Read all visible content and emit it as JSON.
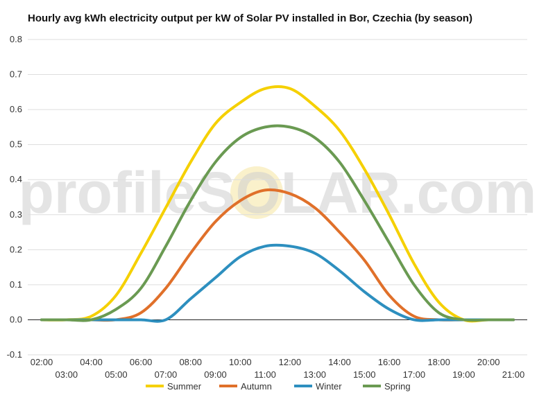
{
  "chart_data": {
    "type": "line",
    "title": "Hourly avg kWh electricity output per kW of Solar PV installed in Bor, Czechia (by season)",
    "watermark": "profileSOLAR.com",
    "xlabel": "",
    "ylabel": "",
    "ylim": [
      -0.1,
      0.8
    ],
    "yticks": [
      "-0.1",
      "0.0",
      "0.1",
      "0.2",
      "0.3",
      "0.4",
      "0.5",
      "0.6",
      "0.7",
      "0.8"
    ],
    "x": [
      "02:00",
      "03:00",
      "04:00",
      "05:00",
      "06:00",
      "07:00",
      "08:00",
      "09:00",
      "10:00",
      "11:00",
      "12:00",
      "13:00",
      "14:00",
      "15:00",
      "16:00",
      "17:00",
      "18:00",
      "19:00",
      "20:00",
      "21:00"
    ],
    "grid": true,
    "legend_position": "bottom",
    "series": [
      {
        "name": "Summer",
        "color": "#f5d000",
        "values": [
          0.0,
          0.0,
          0.01,
          0.07,
          0.19,
          0.32,
          0.45,
          0.56,
          0.62,
          0.66,
          0.66,
          0.61,
          0.54,
          0.43,
          0.3,
          0.16,
          0.05,
          0.0,
          0.0,
          0.0
        ]
      },
      {
        "name": "Autumn",
        "color": "#e0702a",
        "values": [
          0.0,
          0.0,
          0.0,
          0.0,
          0.02,
          0.09,
          0.19,
          0.28,
          0.34,
          0.37,
          0.36,
          0.32,
          0.25,
          0.17,
          0.07,
          0.01,
          0.0,
          0.0,
          0.0,
          0.0
        ]
      },
      {
        "name": "Winter",
        "color": "#2d8fbf",
        "values": [
          0.0,
          0.0,
          0.0,
          0.0,
          0.0,
          0.0,
          0.06,
          0.12,
          0.18,
          0.21,
          0.21,
          0.19,
          0.14,
          0.08,
          0.03,
          0.0,
          0.0,
          0.0,
          0.0,
          0.0
        ]
      },
      {
        "name": "Spring",
        "color": "#6a9a52",
        "values": [
          0.0,
          0.0,
          0.0,
          0.03,
          0.09,
          0.21,
          0.34,
          0.45,
          0.52,
          0.55,
          0.55,
          0.52,
          0.45,
          0.34,
          0.22,
          0.1,
          0.02,
          0.0,
          0.0,
          0.0
        ]
      }
    ]
  }
}
